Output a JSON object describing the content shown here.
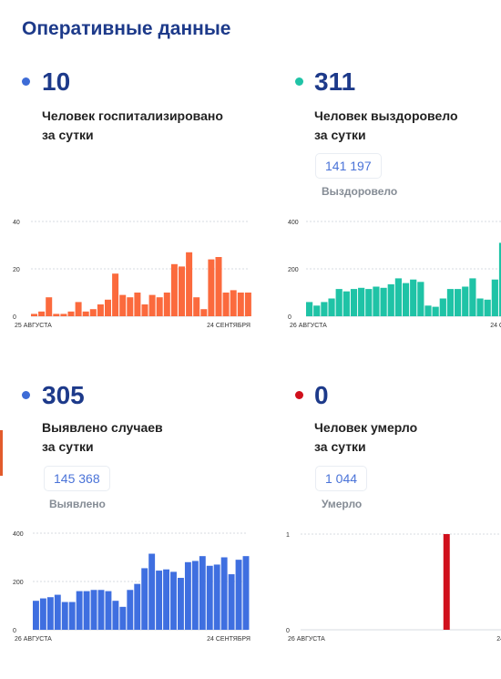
{
  "title": "Оперативные данные",
  "colors": {
    "title": "#1d3a8a",
    "accent_text": "#4a73d8"
  },
  "panels": [
    {
      "id": "hospitalized",
      "number": "10",
      "label_line1": "Человек госпитализировано",
      "label_line2": "за сутки",
      "dot_color": "#3d6bd6",
      "total": null,
      "total_label": null
    },
    {
      "id": "recovered",
      "number": "311",
      "label_line1": "Человек выздоровело",
      "label_line2": "за сутки",
      "dot_color": "#1fc3a6",
      "total": "141 197",
      "total_label": "Выздоровело"
    },
    {
      "id": "cases",
      "number": "305",
      "label_line1": "Выявлено случаев",
      "label_line2": "за сутки",
      "dot_color": "#3d6bd6",
      "total": "145 368",
      "total_label": "Выявлено"
    },
    {
      "id": "deaths",
      "number": "0",
      "label_line1": "Человек умерло",
      "label_line2": "за сутки",
      "dot_color": "#d0101c",
      "total": "1 044",
      "total_label": "Умерло"
    }
  ],
  "chart_data": [
    {
      "type": "bar",
      "panel": "hospitalized",
      "color": "#fb6a3d",
      "ylim": [
        0,
        40
      ],
      "yticks": [
        "40",
        "20",
        "0"
      ],
      "x_start_label": "25 АВГУСТА",
      "x_end_label": "24 СЕНТЯБРЯ",
      "values": [
        1,
        2,
        8,
        1,
        1,
        2,
        6,
        2,
        3,
        5,
        7,
        18,
        9,
        8,
        10,
        5,
        9,
        8,
        10,
        22,
        21,
        27,
        8,
        3,
        24,
        25,
        10,
        11,
        10,
        10
      ]
    },
    {
      "type": "bar",
      "panel": "recovered",
      "color": "#1fc3a6",
      "ylim": [
        0,
        400
      ],
      "yticks": [
        "400",
        "200",
        "0"
      ],
      "x_start_label": "26 АВГУСТА",
      "x_end_label": "24 С",
      "values": [
        60,
        45,
        60,
        75,
        115,
        105,
        115,
        120,
        115,
        125,
        120,
        135,
        160,
        140,
        155,
        145,
        45,
        40,
        75,
        115,
        115,
        125,
        160,
        75,
        70,
        155,
        310,
        300
      ]
    },
    {
      "type": "bar",
      "panel": "cases",
      "color": "#3f6fe0",
      "ylim": [
        0,
        400
      ],
      "yticks": [
        "400",
        "200",
        "0"
      ],
      "x_start_label": "26 АВГУСТА",
      "x_end_label": "24 СЕНТЯБРЯ",
      "values": [
        120,
        130,
        135,
        145,
        115,
        115,
        160,
        160,
        165,
        165,
        160,
        120,
        95,
        165,
        190,
        255,
        315,
        245,
        250,
        240,
        215,
        280,
        285,
        305,
        265,
        270,
        300,
        230,
        290,
        305
      ]
    },
    {
      "type": "bar",
      "panel": "deaths",
      "color": "#d0101c",
      "ylim": [
        0,
        1
      ],
      "yticks": [
        "1",
        "0"
      ],
      "x_start_label": "26 АВГУСТА",
      "x_end_label": "24",
      "values": [
        0,
        0,
        0,
        0,
        0,
        0,
        0,
        0,
        0,
        0,
        0,
        0,
        0,
        0,
        0,
        0,
        0,
        0,
        0,
        1,
        0,
        0,
        0,
        0,
        0,
        0,
        0,
        0,
        0,
        0
      ]
    }
  ]
}
